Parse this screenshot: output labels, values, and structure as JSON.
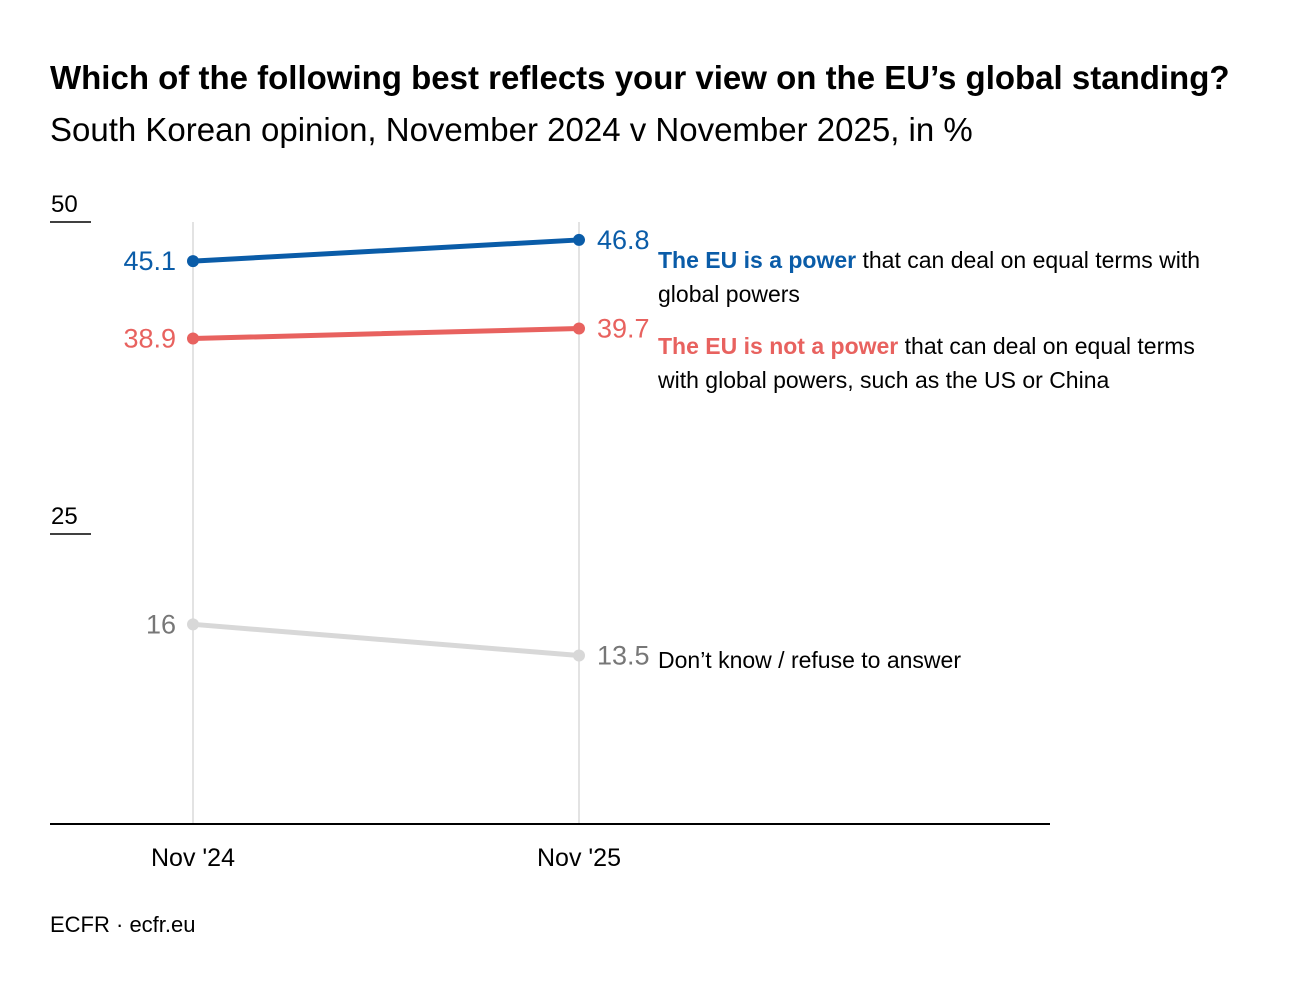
{
  "title": {
    "bold": "Which of the following best reflects your view on the EU’s global standing?",
    "subtitle": "South Korean opinion, November 2024 v November 2025, in %"
  },
  "source": "ECFR · ecfr.eu",
  "chart_data": {
    "type": "line",
    "categories": [
      "Nov '24",
      "Nov '25"
    ],
    "ylim": [
      0,
      50
    ],
    "yticks": [
      "25",
      "50"
    ],
    "grid": "vertical lines at each category",
    "series": [
      {
        "key": "power",
        "label_bold": "The EU is a power",
        "label_rest": "that can deal on equal terms with global powers",
        "color": "#0a5ca8",
        "values": [
          45.1,
          46.8
        ],
        "value_labels": [
          "45.1",
          "46.8"
        ]
      },
      {
        "key": "notpower",
        "label_bold": "The EU is not a power",
        "label_rest": "that can deal on equal terms with global powers, such as the US or China",
        "color": "#e8625f",
        "values": [
          38.9,
          39.7
        ],
        "value_labels": [
          "38.9",
          "39.7"
        ]
      },
      {
        "key": "dontknow",
        "label_bold": "",
        "label_rest": "Don’t know / refuse to answer",
        "color": "#d8d8d8",
        "label_color": "#777777",
        "values": [
          16,
          13.5
        ],
        "value_labels": [
          "16",
          "13.5"
        ]
      }
    ]
  }
}
